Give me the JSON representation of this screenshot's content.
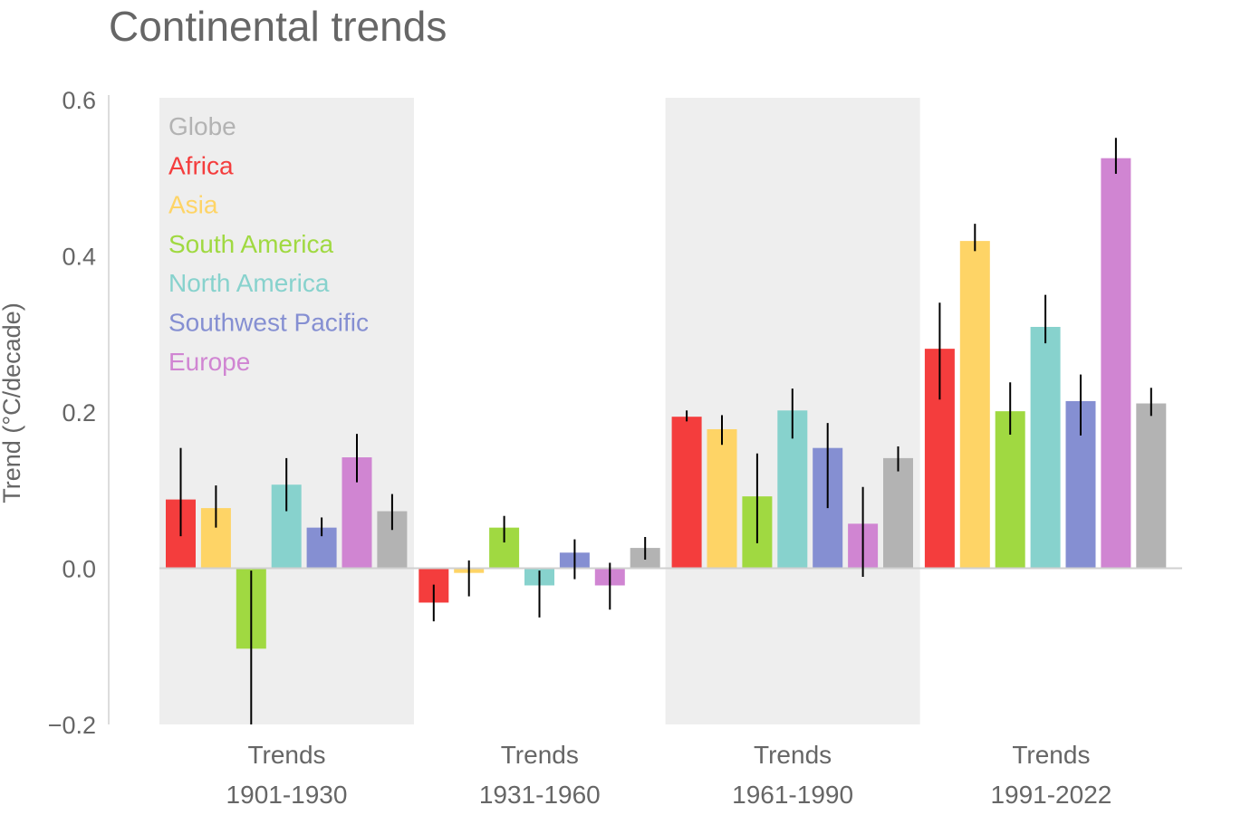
{
  "chart_data": {
    "type": "bar",
    "title": "Continental trends",
    "xlabel": "",
    "ylabel": "Trend (°C/decade)",
    "ylim": [
      -0.2,
      0.6
    ],
    "yticks": [
      -0.2,
      0.0,
      0.2,
      0.4,
      0.6
    ],
    "ytick_labels": [
      "−0.2",
      "0.0",
      "0.2",
      "0.4",
      "0.6"
    ],
    "grid": false,
    "legend_position": "top-left",
    "categories": [
      {
        "line1": "Trends",
        "line2": "1901-1930",
        "shaded": true
      },
      {
        "line1": "Trends",
        "line2": "1931-1960",
        "shaded": false
      },
      {
        "line1": "Trends",
        "line2": "1961-1990",
        "shaded": true
      },
      {
        "line1": "Trends",
        "line2": "1991-2022",
        "shaded": false
      }
    ],
    "legend_order": [
      "Globe",
      "Africa",
      "Asia",
      "South America",
      "North America",
      "Southwest Pacific",
      "Europe"
    ],
    "series": [
      {
        "name": "Africa",
        "color": "#f43d3d",
        "values": [
          0.088,
          -0.044,
          0.194,
          0.281
        ],
        "err_low": [
          0.041,
          -0.068,
          0.188,
          0.216
        ],
        "err_high": [
          0.154,
          -0.021,
          0.202,
          0.34
        ]
      },
      {
        "name": "Asia",
        "color": "#fed466",
        "values": [
          0.077,
          -0.006,
          0.178,
          0.419
        ],
        "err_low": [
          0.052,
          -0.036,
          0.158,
          0.406
        ],
        "err_high": [
          0.106,
          0.01,
          0.196,
          0.441
        ]
      },
      {
        "name": "South America",
        "color": "#a0d941",
        "values": [
          -0.103,
          0.052,
          0.092,
          0.201
        ],
        "err_low": [
          -0.203,
          0.033,
          0.032,
          0.171
        ],
        "err_high": [
          -0.003,
          0.067,
          0.147,
          0.238
        ]
      },
      {
        "name": "North America",
        "color": "#87d2cd",
        "values": [
          0.107,
          -0.022,
          0.202,
          0.309
        ],
        "err_low": [
          0.073,
          -0.063,
          0.166,
          0.288
        ],
        "err_high": [
          0.141,
          -0.003,
          0.23,
          0.35
        ]
      },
      {
        "name": "Southwest Pacific",
        "color": "#858fd2",
        "values": [
          0.052,
          0.02,
          0.154,
          0.214
        ],
        "err_low": [
          0.041,
          -0.014,
          0.077,
          0.17
        ],
        "err_high": [
          0.065,
          0.037,
          0.186,
          0.248
        ]
      },
      {
        "name": "Europe",
        "color": "#d085d2",
        "values": [
          0.142,
          -0.022,
          0.057,
          0.525
        ],
        "err_low": [
          0.11,
          -0.053,
          -0.011,
          0.505
        ],
        "err_high": [
          0.172,
          0.007,
          0.104,
          0.551
        ]
      },
      {
        "name": "Globe",
        "color": "#b3b3b3",
        "values": [
          0.073,
          0.026,
          0.141,
          0.211
        ],
        "err_low": [
          0.049,
          0.011,
          0.124,
          0.195
        ],
        "err_high": [
          0.095,
          0.04,
          0.156,
          0.231
        ]
      }
    ]
  }
}
